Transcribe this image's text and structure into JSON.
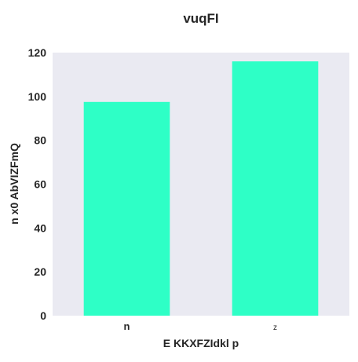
{
  "chart_data": {
    "type": "bar",
    "title": "vuqFI",
    "xlabel": "E KKXFZIdkl p",
    "ylabel": "n x0 AbVIZFmQ",
    "categories": [
      "n",
      "z"
    ],
    "values": [
      97.5,
      116
    ],
    "ylim": [
      0,
      120
    ],
    "yticks": [
      "0",
      "20",
      "40",
      "60",
      "80",
      "100",
      "120"
    ],
    "grid": false,
    "colors": {
      "bar": "#2effc6",
      "plot_background": "#eaeaf2",
      "text": "#262626"
    }
  }
}
